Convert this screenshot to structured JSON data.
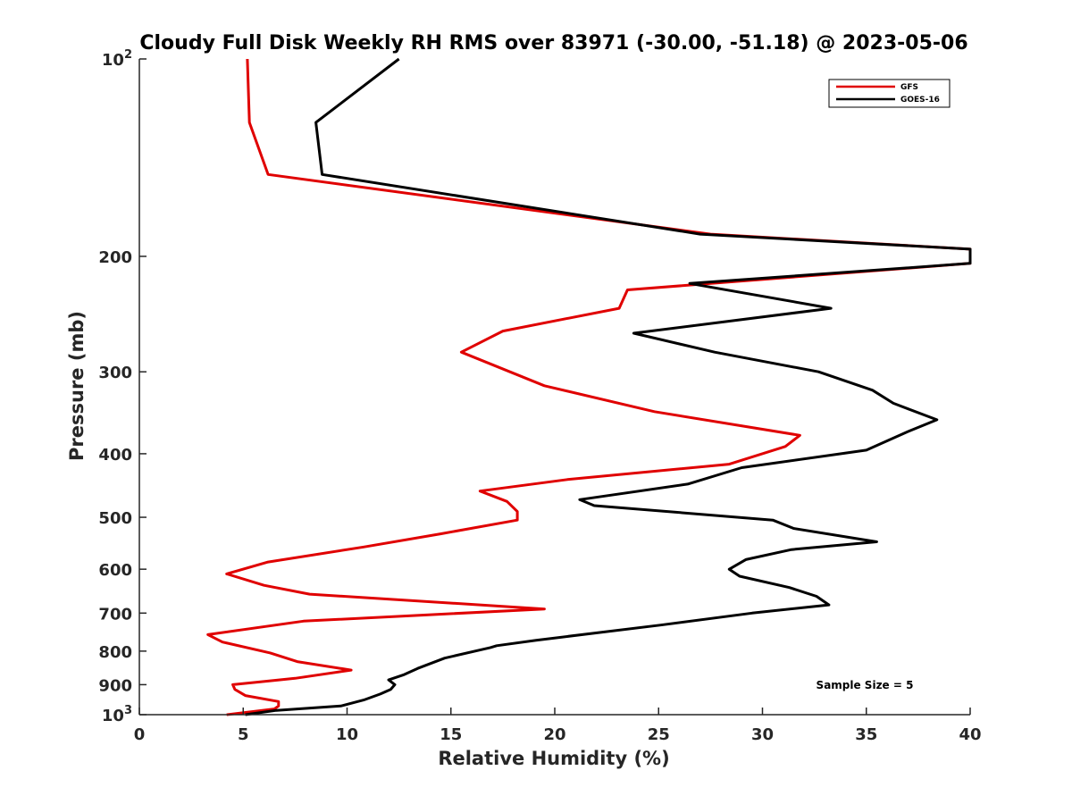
{
  "chart_data": {
    "type": "line",
    "title": "Cloudy Full Disk Weekly RH RMS over 83971 (-30.00, -51.18) @ 2023-05-06",
    "xlabel": "Relative Humidity (%)",
    "ylabel": "Pressure (mb)",
    "xlim": [
      0,
      40
    ],
    "ylim": [
      100,
      1000
    ],
    "y_scale": "log",
    "y_reversed": true,
    "x_ticks": [
      "0",
      "5",
      "10",
      "15",
      "20",
      "25",
      "30",
      "35",
      "40"
    ],
    "y_ticks": [
      {
        "value": 100,
        "base": "10",
        "exp": "2"
      },
      {
        "value": 200,
        "label": "200"
      },
      {
        "value": 300,
        "label": "300"
      },
      {
        "value": 400,
        "label": "400"
      },
      {
        "value": 500,
        "label": "500"
      },
      {
        "value": 600,
        "label": "600"
      },
      {
        "value": 700,
        "label": "700"
      },
      {
        "value": 800,
        "label": "800"
      },
      {
        "value": 900,
        "label": "900"
      },
      {
        "value": 1000,
        "base": "10",
        "exp": "3"
      }
    ],
    "legend_position": "top-right",
    "grid": false,
    "annotation": "Sample Size = 5",
    "series": [
      {
        "name": "GFS",
        "color": "#e00000",
        "points": [
          [
            5.2,
            100
          ],
          [
            5.3,
            125
          ],
          [
            6.2,
            150
          ],
          [
            27.5,
            185
          ],
          [
            40,
            195
          ],
          [
            40,
            205
          ],
          [
            23.5,
            225
          ],
          [
            23.1,
            240
          ],
          [
            17.5,
            260
          ],
          [
            15.5,
            280
          ],
          [
            19.5,
            315
          ],
          [
            24.8,
            345
          ],
          [
            31.8,
            375
          ],
          [
            31.1,
            390
          ],
          [
            28.4,
            415
          ],
          [
            20.6,
            438
          ],
          [
            16.4,
            456
          ],
          [
            17.7,
            473
          ],
          [
            18.2,
            490
          ],
          [
            18.2,
            505
          ],
          [
            14.5,
            530
          ],
          [
            10.8,
            555
          ],
          [
            6.2,
            585
          ],
          [
            4.2,
            610
          ],
          [
            6.0,
            635
          ],
          [
            8.2,
            655
          ],
          [
            19.5,
            690
          ],
          [
            7.9,
            720
          ],
          [
            3.3,
            755
          ],
          [
            4.0,
            775
          ],
          [
            6.3,
            805
          ],
          [
            7.6,
            830
          ],
          [
            10.2,
            855
          ],
          [
            7.5,
            880
          ],
          [
            4.5,
            900
          ],
          [
            4.6,
            915
          ],
          [
            5.1,
            935
          ],
          [
            6.7,
            955
          ],
          [
            6.7,
            970
          ],
          [
            6.5,
            980
          ],
          [
            4.2,
            1000
          ]
        ]
      },
      {
        "name": "GOES-16",
        "color": "#000000",
        "points": [
          [
            12.5,
            100
          ],
          [
            8.5,
            125
          ],
          [
            8.8,
            150
          ],
          [
            27.0,
            185
          ],
          [
            40,
            195
          ],
          [
            40,
            205
          ],
          [
            26.5,
            220
          ],
          [
            33.3,
            240
          ],
          [
            23.8,
            262
          ],
          [
            27.7,
            280
          ],
          [
            32.7,
            300
          ],
          [
            35.3,
            320
          ],
          [
            36.3,
            335
          ],
          [
            38.4,
            355
          ],
          [
            37.0,
            370
          ],
          [
            35.0,
            395
          ],
          [
            29.0,
            420
          ],
          [
            26.4,
            445
          ],
          [
            21.2,
            470
          ],
          [
            21.9,
            480
          ],
          [
            30.5,
            505
          ],
          [
            31.5,
            520
          ],
          [
            35.5,
            545
          ],
          [
            31.4,
            560
          ],
          [
            29.2,
            580
          ],
          [
            28.4,
            600
          ],
          [
            28.9,
            615
          ],
          [
            31.3,
            640
          ],
          [
            32.6,
            660
          ],
          [
            33.2,
            680
          ],
          [
            29.5,
            700
          ],
          [
            25.1,
            730
          ],
          [
            19.1,
            770
          ],
          [
            17.2,
            785
          ],
          [
            16.9,
            790
          ],
          [
            14.7,
            820
          ],
          [
            13.4,
            850
          ],
          [
            12.7,
            870
          ],
          [
            12.0,
            885
          ],
          [
            12.3,
            900
          ],
          [
            12.1,
            915
          ],
          [
            11.6,
            930
          ],
          [
            10.8,
            950
          ],
          [
            9.7,
            970
          ],
          [
            6.6,
            985
          ],
          [
            5.1,
            1000
          ]
        ]
      }
    ]
  }
}
